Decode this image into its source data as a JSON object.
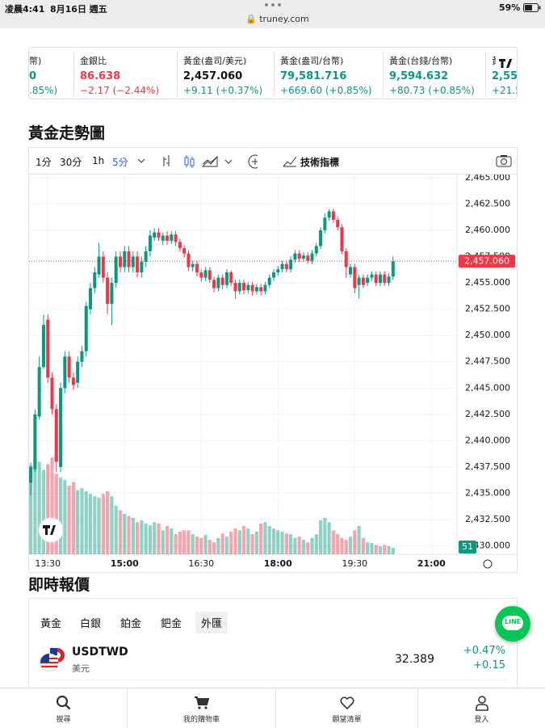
{
  "status_bar": {
    "time": "凌晨4:41",
    "date": "8月16日 週五",
    "url": "truney.com",
    "battery": "59%"
  },
  "ticker": [
    {
      "name": "幣)",
      "price": "0",
      "change": ".85%)"
    },
    {
      "name": "金銀比",
      "price": "86.638",
      "change": "−2.17 (−2.44%)"
    },
    {
      "name": "黃金(盎司/美元)",
      "price": "2,457.060",
      "change": "+9.11 (+0.37%)"
    },
    {
      "name": "黃金(盎司/台幣)",
      "price": "79,581.716",
      "change": "+669.60 (+0.85%)"
    },
    {
      "name": "黃金(台錢/台幣)",
      "price": "9,594.632",
      "change": "+80.73 (+0.85%)"
    },
    {
      "name": "黃",
      "price": "2,55",
      "change": "+21.5"
    }
  ],
  "chart_section": {
    "title": "黃金走勢圖",
    "intervals": [
      "1分",
      "30分",
      "1h",
      "5分"
    ],
    "indicators": "技術指標"
  },
  "chart_data": {
    "type": "candlestick",
    "up_color": "#089981",
    "down_color": "#f23645",
    "grid": true,
    "x": [
      "13:10",
      "13:15",
      "13:20",
      "13:25",
      "13:30",
      "13:35",
      "13:40",
      "13:45",
      "13:50",
      "13:55",
      "14:00",
      "14:05",
      "14:10",
      "14:15",
      "14:20",
      "14:25",
      "14:30",
      "14:35",
      "14:40",
      "14:45",
      "14:50",
      "14:55",
      "15:00",
      "15:05",
      "15:10",
      "15:15",
      "15:20",
      "15:25",
      "15:30",
      "15:35",
      "15:40",
      "15:45",
      "15:50",
      "15:55",
      "16:00",
      "16:05",
      "16:10",
      "16:15",
      "16:20",
      "16:25",
      "16:30",
      "16:35",
      "16:40",
      "16:45",
      "16:50",
      "16:55",
      "17:00",
      "17:05",
      "17:10",
      "17:15",
      "17:20",
      "17:25",
      "17:30",
      "17:35",
      "17:40",
      "17:45",
      "17:50",
      "17:55",
      "18:00",
      "18:05",
      "18:10",
      "18:15",
      "18:20",
      "18:25",
      "18:30",
      "18:35",
      "18:40",
      "18:45",
      "18:50",
      "18:55",
      "19:00",
      "19:05",
      "19:10",
      "19:15",
      "19:20",
      "19:25",
      "19:30",
      "19:35",
      "19:40",
      "19:45",
      "19:50",
      "19:55",
      "20:00",
      "20:05",
      "20:10",
      "20:15"
    ],
    "open": [
      2436.0,
      2437.3,
      2442.3,
      2447.0,
      2451.5,
      2446.0,
      2443.0,
      2437.5,
      2445.0,
      2448.0,
      2446.0,
      2445.5,
      2447.5,
      2448.5,
      2452.5,
      2454.5,
      2455.8,
      2457.5,
      2455.5,
      2453.0,
      2455.0,
      2457.5,
      2456.5,
      2458.0,
      2456.5,
      2457.5,
      2456.0,
      2457.0,
      2458.0,
      2459.3,
      2459.8,
      2459.0,
      2459.5,
      2459.0,
      2459.6,
      2458.9,
      2458.3,
      2457.8,
      2456.5,
      2456.8,
      2456.0,
      2455.5,
      2456.2,
      2455.3,
      2454.5,
      2455.5,
      2454.8,
      2456.0,
      2455.0,
      2454.2,
      2455.0,
      2454.3,
      2454.8,
      2454.2,
      2454.6,
      2454.2,
      2454.8,
      2455.5,
      2456.0,
      2456.3,
      2456.8,
      2456.3,
      2457.2,
      2457.8,
      2457.3,
      2457.6,
      2457.1,
      2457.8,
      2458.5,
      2460.0,
      2461.2,
      2461.8,
      2461.0,
      2460.3,
      2458.0,
      2455.8,
      2456.5,
      2454.8,
      2455.5,
      2455.0,
      2455.5,
      2455.8,
      2455.0,
      2455.8,
      2455.0,
      2455.6
    ],
    "high": [
      2437.9,
      2443.0,
      2448.0,
      2452.0,
      2452.0,
      2446.5,
      2443.5,
      2445.5,
      2448.5,
      2448.5,
      2446.5,
      2448.0,
      2449.0,
      2453.2,
      2455.0,
      2456.5,
      2458.8,
      2458.0,
      2456.0,
      2455.5,
      2458.0,
      2458.0,
      2458.5,
      2458.5,
      2458.0,
      2458.0,
      2457.5,
      2458.5,
      2460.0,
      2460.2,
      2460.2,
      2459.8,
      2459.9,
      2459.9,
      2459.9,
      2459.2,
      2458.6,
      2458.1,
      2457.1,
      2457.1,
      2456.3,
      2456.5,
      2456.5,
      2455.6,
      2455.8,
      2455.8,
      2456.3,
      2456.2,
      2455.3,
      2455.3,
      2455.3,
      2455.1,
      2455.1,
      2454.9,
      2454.9,
      2455.1,
      2455.8,
      2456.3,
      2456.6,
      2457.1,
      2457.1,
      2457.5,
      2458.1,
      2458.1,
      2457.9,
      2457.9,
      2458.1,
      2458.8,
      2460.3,
      2461.6,
      2462.0,
      2462.0,
      2461.3,
      2460.6,
      2458.3,
      2456.8,
      2456.8,
      2455.8,
      2455.8,
      2455.8,
      2456.1,
      2456.1,
      2456.1,
      2456.1,
      2455.9,
      2457.5
    ],
    "low": [
      2434.8,
      2437.0,
      2442.0,
      2446.8,
      2445.5,
      2442.5,
      2437.0,
      2437.0,
      2444.5,
      2445.5,
      2444.8,
      2445.0,
      2447.0,
      2448.0,
      2452.0,
      2454.0,
      2455.5,
      2455.0,
      2452.0,
      2451.0,
      2454.5,
      2456.0,
      2456.0,
      2456.0,
      2456.0,
      2455.5,
      2455.5,
      2456.5,
      2457.5,
      2459.0,
      2459.0,
      2458.6,
      2458.6,
      2458.7,
      2458.5,
      2458.0,
      2457.4,
      2456.1,
      2456.1,
      2455.6,
      2455.1,
      2455.2,
      2455.0,
      2454.1,
      2454.2,
      2454.4,
      2454.5,
      2454.7,
      2453.5,
      2453.9,
      2453.9,
      2454.0,
      2453.8,
      2453.9,
      2453.8,
      2453.9,
      2454.5,
      2455.2,
      2455.7,
      2456.0,
      2456.0,
      2456.0,
      2456.9,
      2457.0,
      2457.0,
      2456.8,
      2456.8,
      2457.5,
      2458.2,
      2459.7,
      2460.9,
      2460.7,
      2460.0,
      2457.7,
      2455.5,
      2455.5,
      2454.0,
      2453.5,
      2454.5,
      2454.7,
      2455.2,
      2454.7,
      2454.7,
      2454.7,
      2454.7,
      2455.3
    ],
    "close": [
      2437.5,
      2442.5,
      2447.0,
      2451.0,
      2446.0,
      2443.0,
      2438.0,
      2445.0,
      2448.0,
      2446.0,
      2445.3,
      2447.5,
      2448.5,
      2452.8,
      2454.5,
      2456.0,
      2457.5,
      2455.5,
      2453.0,
      2455.0,
      2457.5,
      2456.5,
      2458.0,
      2456.5,
      2457.5,
      2456.0,
      2457.0,
      2458.0,
      2459.5,
      2459.8,
      2459.3,
      2459.5,
      2459.0,
      2459.6,
      2458.9,
      2458.3,
      2457.8,
      2456.5,
      2456.8,
      2456.0,
      2455.5,
      2456.2,
      2455.3,
      2454.5,
      2455.5,
      2454.8,
      2456.0,
      2455.0,
      2454.2,
      2455.0,
      2454.3,
      2454.8,
      2454.2,
      2454.6,
      2454.2,
      2454.8,
      2455.5,
      2456.0,
      2456.3,
      2456.8,
      2456.3,
      2457.2,
      2457.8,
      2457.3,
      2457.6,
      2457.1,
      2457.8,
      2458.5,
      2460.0,
      2461.2,
      2461.8,
      2461.0,
      2460.3,
      2458.0,
      2456.5,
      2456.5,
      2454.5,
      2455.5,
      2454.8,
      2455.5,
      2455.8,
      2455.0,
      2455.8,
      2455.0,
      2455.6,
      2457.06
    ],
    "volume": [
      705,
      755,
      735,
      670,
      715,
      770,
      640,
      610,
      590,
      545,
      575,
      510,
      525,
      500,
      480,
      460,
      450,
      480,
      500,
      460,
      385,
      350,
      320,
      305,
      290,
      255,
      270,
      245,
      230,
      255,
      245,
      190,
      225,
      205,
      160,
      180,
      190,
      190,
      160,
      140,
      130,
      155,
      115,
      95,
      130,
      165,
      140,
      180,
      205,
      190,
      225,
      205,
      160,
      180,
      245,
      255,
      225,
      205,
      190,
      180,
      165,
      160,
      130,
      140,
      115,
      95,
      130,
      160,
      270,
      290,
      255,
      190,
      160,
      130,
      115,
      140,
      190,
      225,
      130,
      95,
      90,
      75,
      65,
      75,
      65,
      51
    ],
    "price_line": {
      "value": 2457.06,
      "label": "2,457.060"
    },
    "xlim": [
      "13:08",
      "21:30"
    ],
    "xticks": [
      "13:30",
      "15:00",
      "16:30",
      "18:00",
      "19:30",
      "21:00"
    ],
    "ylim": [
      2429.2,
      2465.3
    ],
    "yticks": [
      {
        "value": 2430,
        "label": "2,430.000"
      },
      {
        "value": 2432.5,
        "label": "2,432.500"
      },
      {
        "value": 2435,
        "label": "2,435.000"
      },
      {
        "value": 2437.5,
        "label": "2,437.500"
      },
      {
        "value": 2440,
        "label": "2,440.000"
      },
      {
        "value": 2442.5,
        "label": "2,442.500"
      },
      {
        "value": 2445,
        "label": "2,445.000"
      },
      {
        "value": 2447.5,
        "label": "2,447.500"
      },
      {
        "value": 2450,
        "label": "2,450.000"
      },
      {
        "value": 2452.5,
        "label": "2,452.500"
      },
      {
        "value": 2455,
        "label": "2,455.000"
      },
      {
        "value": 2457.5,
        "label": "2,457.500"
      },
      {
        "value": 2460,
        "label": "2,460.000"
      },
      {
        "value": 2462.5,
        "label": "2,462.500"
      },
      {
        "value": 2465,
        "label": "2,465.000"
      }
    ]
  },
  "quotes": {
    "title": "即時報價",
    "tabs": [
      "黃金",
      "白銀",
      "鉑金",
      "鈀金",
      "外匯"
    ],
    "rows": [
      {
        "symbol": "USDTWD",
        "name": "美元",
        "price": "32.389",
        "change_pct": "+0.47%",
        "change": "+0.15"
      }
    ]
  },
  "line_button": "LINE",
  "nav": [
    "搜尋",
    "我的購物車",
    "願望清單",
    "登入"
  ]
}
